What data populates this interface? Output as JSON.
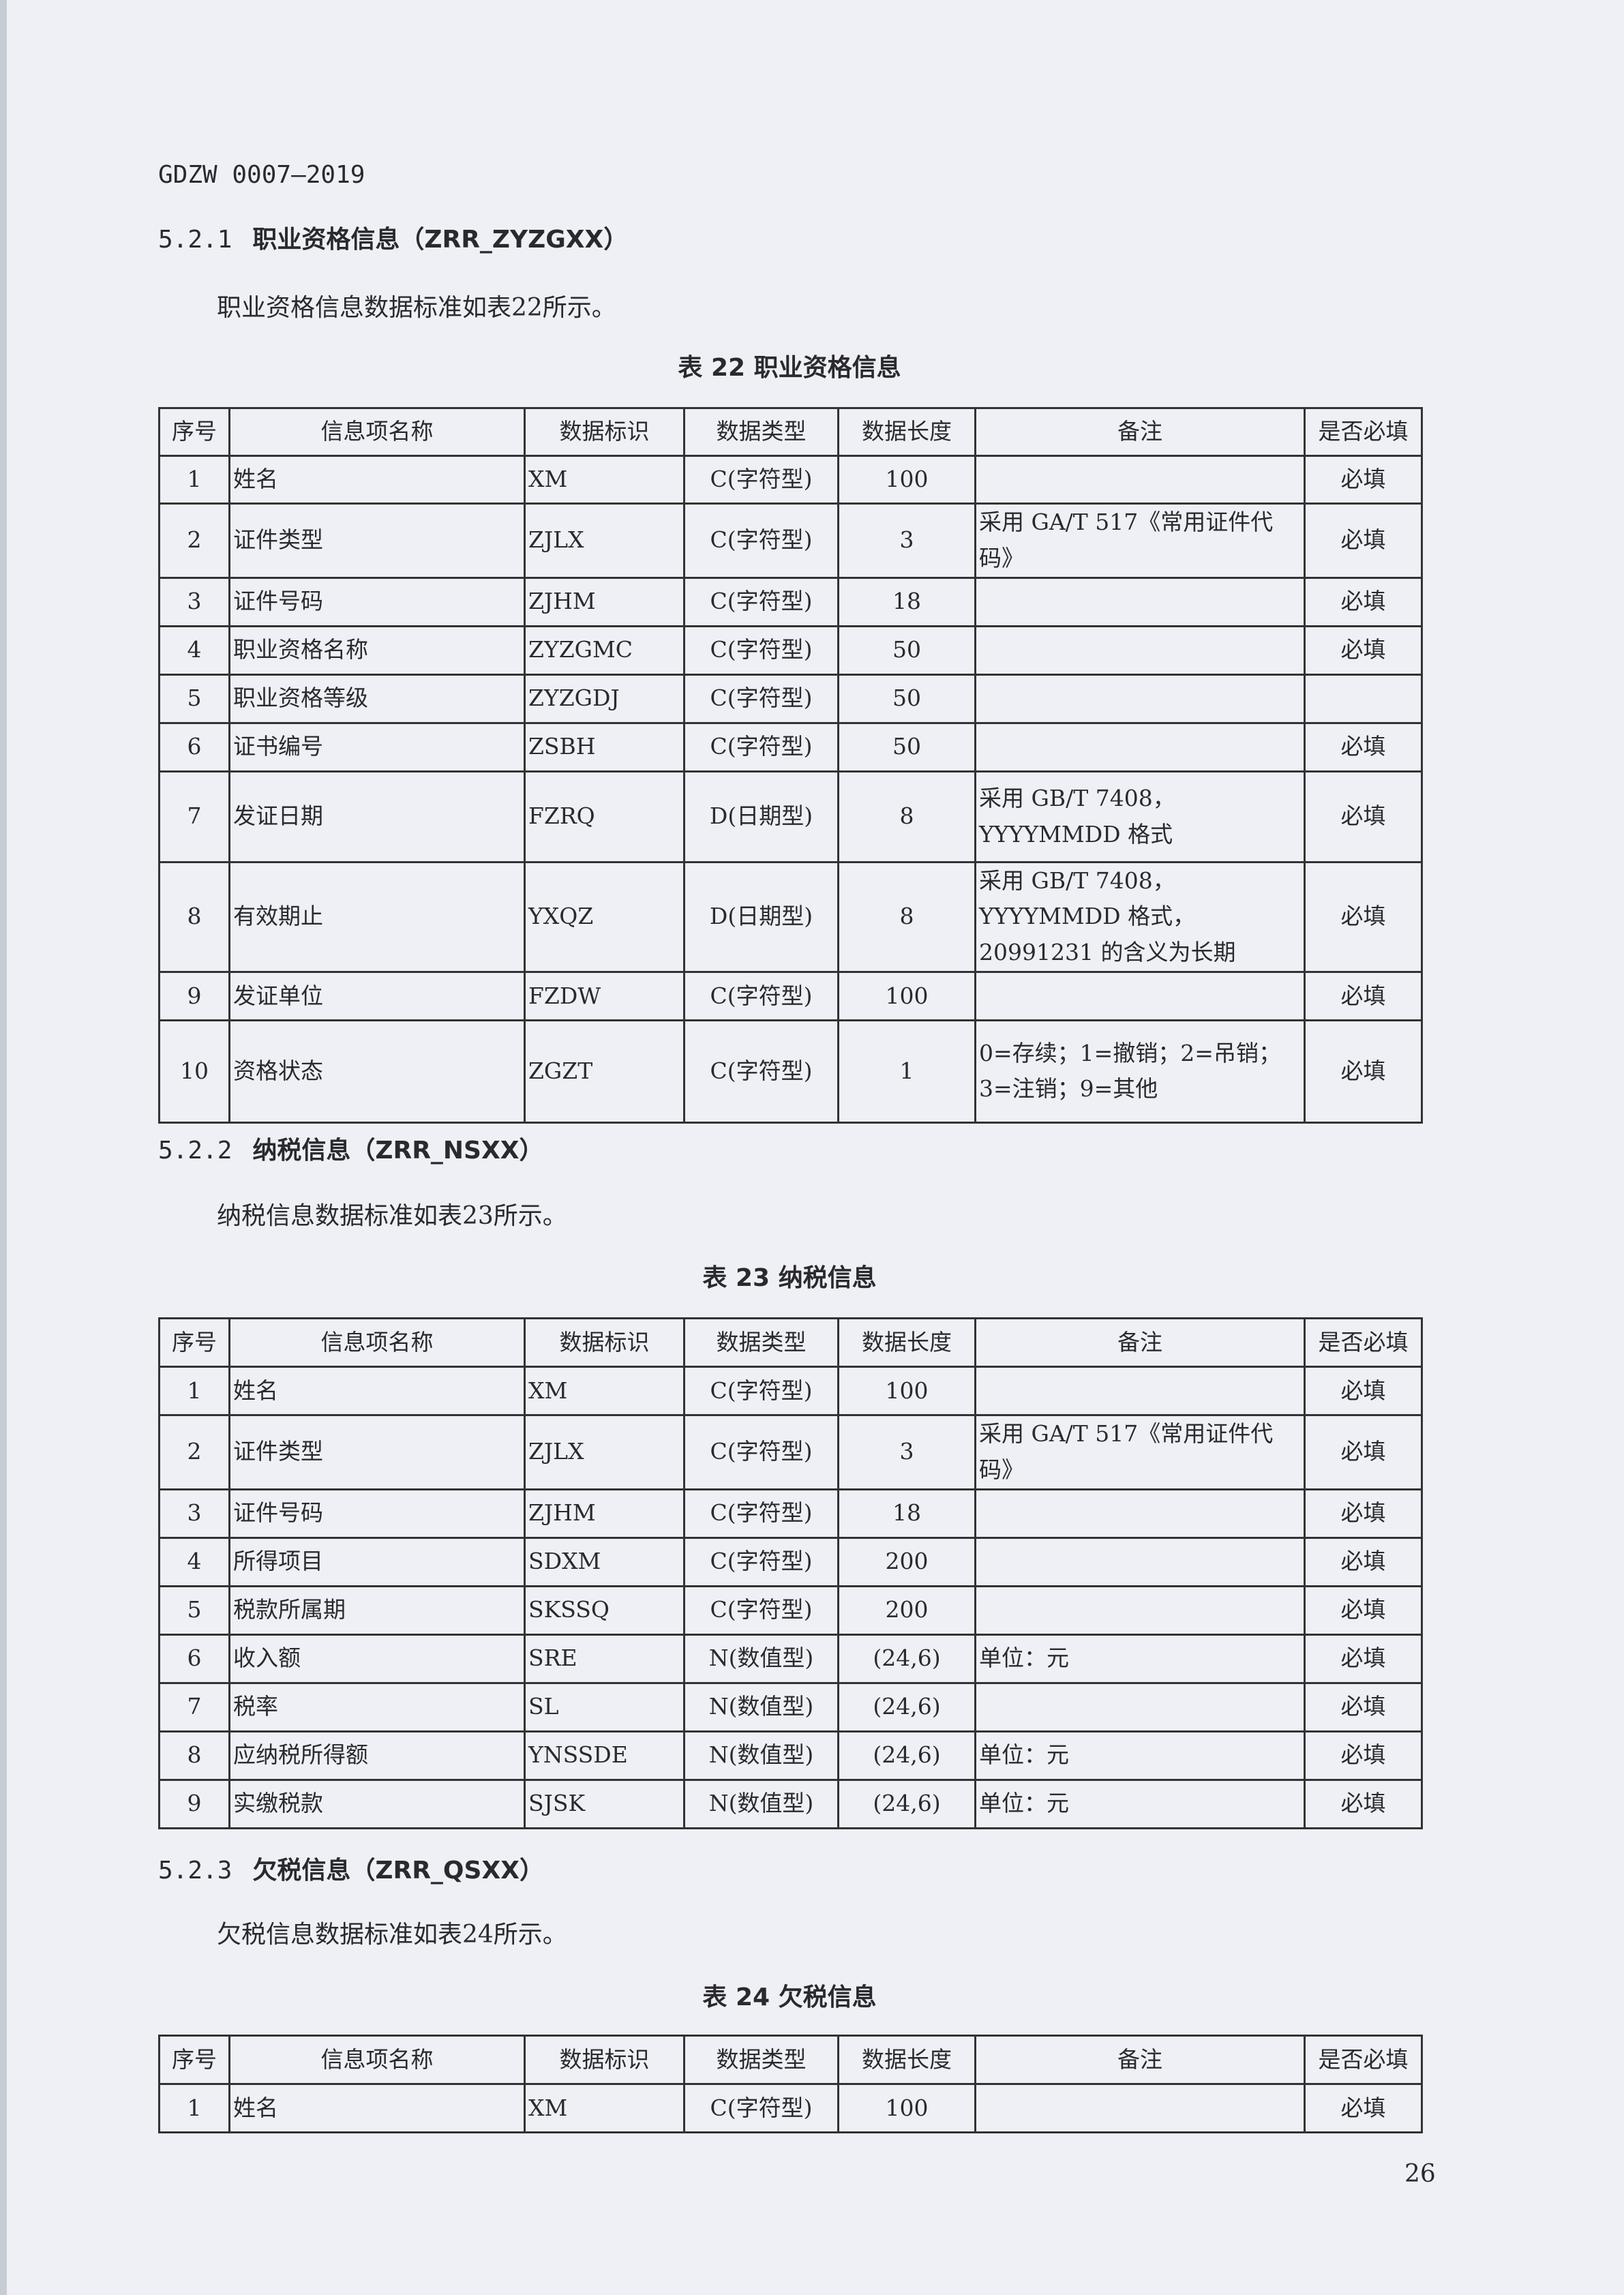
{
  "header": {
    "doc_id": "GDZW 0007—2019"
  },
  "columns": [
    "序号",
    "信息项名称",
    "数据标识",
    "数据类型",
    "数据长度",
    "备注",
    "是否必填"
  ],
  "sections": [
    {
      "number": "5.2.1",
      "title": "职业资格信息（ZRR_ZYZGXX）",
      "paragraph": "职业资格信息数据标准如表22所示。",
      "caption": "表 22 职业资格信息",
      "rows": [
        [
          "1",
          "姓名",
          "XM",
          "C(字符型)",
          "100",
          "",
          "必填"
        ],
        [
          "2",
          "证件类型",
          "ZJLX",
          "C(字符型)",
          "3",
          "采用 GA/T 517《常用证件代码》",
          "必填"
        ],
        [
          "3",
          "证件号码",
          "ZJHM",
          "C(字符型)",
          "18",
          "",
          "必填"
        ],
        [
          "4",
          "职业资格名称",
          "ZYZGMC",
          "C(字符型)",
          "50",
          "",
          "必填"
        ],
        [
          "5",
          "职业资格等级",
          "ZYZGDJ",
          "C(字符型)",
          "50",
          "",
          ""
        ],
        [
          "6",
          "证书编号",
          "ZSBH",
          "C(字符型)",
          "50",
          "",
          "必填"
        ],
        [
          "7",
          "发证日期",
          "FZRQ",
          "D(日期型)",
          "8",
          "采用 GB/T 7408，YYYYMMDD 格式",
          "必填"
        ],
        [
          "8",
          "有效期止",
          "YXQZ",
          "D(日期型)",
          "8",
          "采用 GB/T 7408，YYYYMMDD 格式，20991231 的含义为长期",
          "必填"
        ],
        [
          "9",
          "发证单位",
          "FZDW",
          "C(字符型)",
          "100",
          "",
          "必填"
        ],
        [
          "10",
          "资格状态",
          "ZGZT",
          "C(字符型)",
          "1",
          "0=存续；1=撤销；2=吊销；3=注销；9=其他",
          "必填"
        ]
      ]
    },
    {
      "number": "5.2.2",
      "title": "纳税信息（ZRR_NSXX）",
      "paragraph": "纳税信息数据标准如表23所示。",
      "caption": "表 23 纳税信息",
      "rows": [
        [
          "1",
          "姓名",
          "XM",
          "C(字符型)",
          "100",
          "",
          "必填"
        ],
        [
          "2",
          "证件类型",
          "ZJLX",
          "C(字符型)",
          "3",
          "采用 GA/T 517《常用证件代码》",
          "必填"
        ],
        [
          "3",
          "证件号码",
          "ZJHM",
          "C(字符型)",
          "18",
          "",
          "必填"
        ],
        [
          "4",
          "所得项目",
          "SDXM",
          "C(字符型)",
          "200",
          "",
          "必填"
        ],
        [
          "5",
          "税款所属期",
          "SKSSQ",
          "C(字符型)",
          "200",
          "",
          "必填"
        ],
        [
          "6",
          "收入额",
          "SRE",
          "N(数值型)",
          "(24,6)",
          "单位：元",
          "必填"
        ],
        [
          "7",
          "税率",
          "SL",
          "N(数值型)",
          "(24,6)",
          "",
          "必填"
        ],
        [
          "8",
          "应纳税所得额",
          "YNSSDE",
          "N(数值型)",
          "(24,6)",
          "单位：元",
          "必填"
        ],
        [
          "9",
          "实缴税款",
          "SJSK",
          "N(数值型)",
          "(24,6)",
          "单位：元",
          "必填"
        ]
      ]
    },
    {
      "number": "5.2.3",
      "title": "欠税信息（ZRR_QSXX）",
      "paragraph": "欠税信息数据标准如表24所示。",
      "caption": "表 24 欠税信息",
      "rows": [
        [
          "1",
          "姓名",
          "XM",
          "C(字符型)",
          "100",
          "",
          "必填"
        ]
      ]
    }
  ],
  "page_number": "26"
}
